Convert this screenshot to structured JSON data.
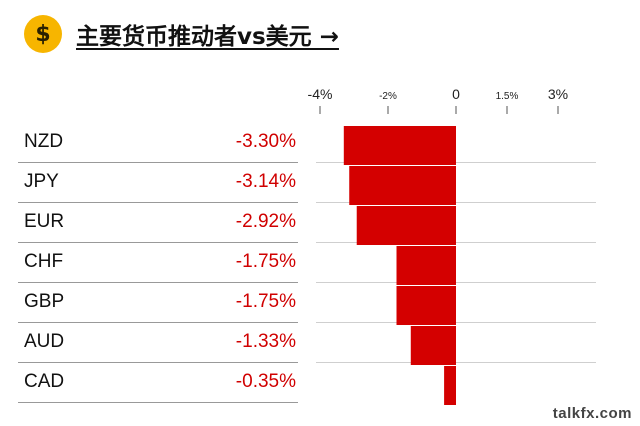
{
  "header": {
    "icon": "dollar-coin-icon",
    "icon_glyph": "$",
    "title": "主要货币推动者vs美元 →"
  },
  "colors": {
    "bar": "#d40000",
    "negative_text": "#d00000",
    "coin": "#f7b500"
  },
  "chart_data": {
    "type": "bar",
    "orientation": "horizontal",
    "categories": [
      "NZD",
      "JPY",
      "EUR",
      "CHF",
      "GBP",
      "AUD",
      "CAD"
    ],
    "values": [
      -3.3,
      -3.14,
      -2.92,
      -1.75,
      -1.75,
      -1.33,
      -0.35
    ],
    "labels": [
      "-3.30%",
      "-3.14%",
      "-2.92%",
      "-1.75%",
      "-1.75%",
      "-1.33%",
      "-0.35%"
    ],
    "x_ticks": [
      {
        "value": -4,
        "label": "-4%"
      },
      {
        "value": -2,
        "label": "-2%"
      },
      {
        "value": 0,
        "label": "0"
      },
      {
        "value": 1.5,
        "label": "1.5%"
      },
      {
        "value": 3,
        "label": "3%"
      }
    ],
    "xlim": [
      -4,
      3
    ]
  },
  "watermark": "talkfx.com"
}
